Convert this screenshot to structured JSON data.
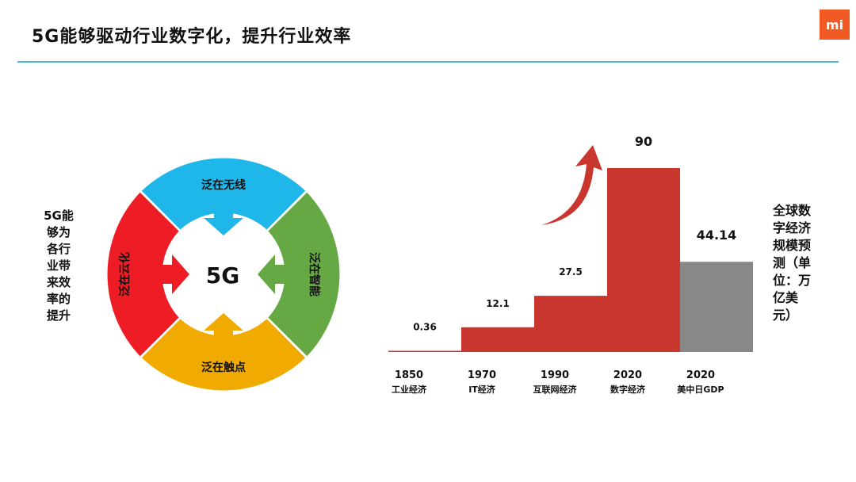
{
  "header": {
    "title": "5G能够驱动行业数字化，提升行业效率",
    "logo_text": "mi",
    "rule_color": "#4cb8d8",
    "logo_color": "#f15a22"
  },
  "left_caption": "5G能够为各行业带来效率的提升",
  "ring": {
    "center": "5G",
    "segments": [
      {
        "label": "泛在无线",
        "color": "#1fb6ea"
      },
      {
        "label": "泛在智能",
        "color": "#65a844"
      },
      {
        "label": "泛在触点",
        "color": "#f0aa00"
      },
      {
        "label": "泛在云化",
        "color": "#ee1c25"
      }
    ]
  },
  "right_caption": "全球数字经济规模预测（单位：万亿美元）",
  "chart_data": {
    "type": "bar",
    "categories": [
      {
        "year": "1850",
        "name": "工业经济"
      },
      {
        "year": "1970",
        "name": "IT经济"
      },
      {
        "year": "1990",
        "name": "互联网经济"
      },
      {
        "year": "2020",
        "name": "数字经济"
      },
      {
        "year": "2020",
        "name": "美中日GDP"
      }
    ],
    "values": [
      0.36,
      12.1,
      27.5,
      90,
      44.14
    ],
    "value_labels": [
      "0.36",
      "12.1",
      "27.5",
      "90",
      "44.14"
    ],
    "colors": [
      "#c8362e",
      "#c8362e",
      "#c8362e",
      "#c8362e",
      "#888888"
    ],
    "ylim": [
      0,
      90
    ],
    "grid": false,
    "legend": "none"
  }
}
